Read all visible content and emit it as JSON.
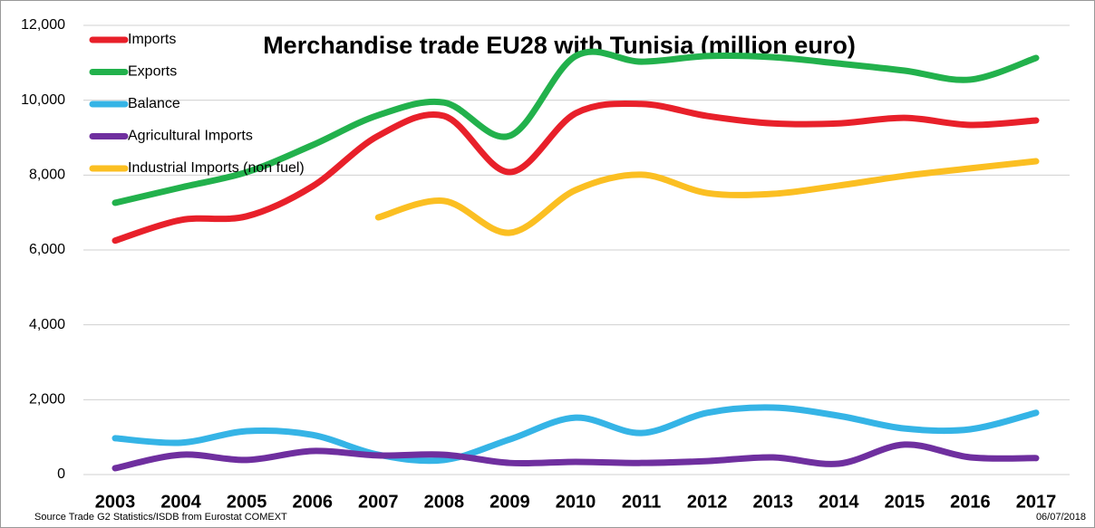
{
  "chart_data": {
    "type": "line",
    "title": "Merchandise trade EU28 with Tunisia (million euro)",
    "source": "Source Trade G2 Statistics/ISDB from Eurostat COMEXT",
    "date": "06/07/2018",
    "categories": [
      "2003",
      "2004",
      "2005",
      "2006",
      "2007",
      "2008",
      "2009",
      "2010",
      "2011",
      "2012",
      "2013",
      "2014",
      "2015",
      "2016",
      "2017"
    ],
    "ylim": [
      0,
      12000
    ],
    "yticks": [
      0,
      {
        "value": 2000,
        "label": "2,000"
      },
      {
        "value": 4000,
        "label": "4,000"
      },
      {
        "value": 6000,
        "label": "6,000"
      },
      {
        "value": 8000,
        "label": "8,000"
      },
      {
        "value": 10000,
        "label": "10,000"
      },
      {
        "value": 12000,
        "label": "12,000"
      }
    ],
    "grid": true,
    "legend": "upper left",
    "series": [
      {
        "name": "Imports",
        "color": "#e8202a",
        "values": [
          6250,
          6800,
          6900,
          7700,
          9050,
          9580,
          8080,
          9650,
          9900,
          9580,
          9380,
          9380,
          9530,
          9340,
          9460
        ]
      },
      {
        "name": "Exports",
        "color": "#22b14c",
        "values": [
          7260,
          7670,
          8080,
          8800,
          9600,
          9940,
          9050,
          11180,
          11030,
          11180,
          11150,
          10980,
          10790,
          10550,
          11130
        ]
      },
      {
        "name": "Balance",
        "color": "#35b4e6",
        "values": [
          970,
          850,
          1160,
          1060,
          530,
          390,
          940,
          1520,
          1110,
          1650,
          1790,
          1570,
          1230,
          1210,
          1650
        ]
      },
      {
        "name": "Agricultural Imports",
        "color": "#6f2f9f",
        "values": [
          170,
          530,
          390,
          630,
          510,
          530,
          310,
          340,
          310,
          360,
          460,
          290,
          800,
          460,
          440
        ]
      },
      {
        "name": "Industrial Imports (non fuel)",
        "color": "#fbbf22",
        "values": [
          null,
          null,
          null,
          null,
          6870,
          7310,
          6460,
          7600,
          8010,
          7520,
          7500,
          7720,
          7980,
          8180,
          8370
        ]
      }
    ]
  }
}
